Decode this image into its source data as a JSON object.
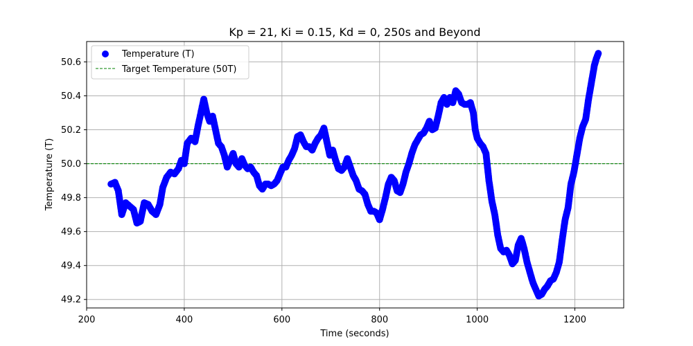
{
  "chart_data": {
    "type": "scatter",
    "title": "Kp = 21, Ki = 0.15, Kd = 0, 250s and Beyond",
    "xlabel": "Time (seconds)",
    "ylabel": "Temperature (T)",
    "xlim": [
      200,
      1300
    ],
    "ylim": [
      49.15,
      50.72
    ],
    "xticks": [
      200,
      400,
      600,
      800,
      1000,
      1200
    ],
    "yticks": [
      49.2,
      49.4,
      49.6,
      49.8,
      50.0,
      50.2,
      50.4,
      50.6
    ],
    "xtick_labels": [
      "200",
      "400",
      "600",
      "800",
      "1000",
      "1200"
    ],
    "ytick_labels": [
      "49.2",
      "49.4",
      "49.6",
      "49.8",
      "50.0",
      "50.2",
      "50.4",
      "50.6"
    ],
    "grid": true,
    "legend_position": "top-left",
    "series": [
      {
        "name": "Temperature (T)",
        "color": "#0000ff",
        "points": [
          [
            250,
            49.88
          ],
          [
            258,
            49.89
          ],
          [
            265,
            49.84
          ],
          [
            272,
            49.7
          ],
          [
            280,
            49.77
          ],
          [
            288,
            49.75
          ],
          [
            296,
            49.73
          ],
          [
            303,
            49.65
          ],
          [
            310,
            49.66
          ],
          [
            318,
            49.77
          ],
          [
            326,
            49.76
          ],
          [
            334,
            49.72
          ],
          [
            342,
            49.7
          ],
          [
            350,
            49.76
          ],
          [
            356,
            49.86
          ],
          [
            364,
            49.92
          ],
          [
            372,
            49.95
          ],
          [
            380,
            49.94
          ],
          [
            388,
            49.97
          ],
          [
            394,
            50.02
          ],
          [
            400,
            50.0
          ],
          [
            406,
            50.12
          ],
          [
            414,
            50.15
          ],
          [
            422,
            50.13
          ],
          [
            428,
            50.22
          ],
          [
            434,
            50.3
          ],
          [
            440,
            50.38
          ],
          [
            446,
            50.3
          ],
          [
            452,
            50.25
          ],
          [
            458,
            50.28
          ],
          [
            464,
            50.2
          ],
          [
            470,
            50.12
          ],
          [
            476,
            50.1
          ],
          [
            482,
            50.05
          ],
          [
            488,
            49.98
          ],
          [
            494,
            50.02
          ],
          [
            500,
            50.06
          ],
          [
            506,
            50.0
          ],
          [
            512,
            49.98
          ],
          [
            518,
            50.03
          ],
          [
            524,
            49.99
          ],
          [
            530,
            49.97
          ],
          [
            536,
            49.98
          ],
          [
            542,
            49.95
          ],
          [
            548,
            49.93
          ],
          [
            554,
            49.87
          ],
          [
            560,
            49.85
          ],
          [
            566,
            49.88
          ],
          [
            572,
            49.88
          ],
          [
            578,
            49.87
          ],
          [
            584,
            49.88
          ],
          [
            590,
            49.9
          ],
          [
            596,
            49.94
          ],
          [
            602,
            49.98
          ],
          [
            608,
            49.98
          ],
          [
            614,
            50.02
          ],
          [
            620,
            50.05
          ],
          [
            626,
            50.09
          ],
          [
            632,
            50.16
          ],
          [
            638,
            50.17
          ],
          [
            644,
            50.13
          ],
          [
            650,
            50.1
          ],
          [
            656,
            50.1
          ],
          [
            662,
            50.08
          ],
          [
            668,
            50.12
          ],
          [
            674,
            50.15
          ],
          [
            680,
            50.17
          ],
          [
            686,
            50.21
          ],
          [
            692,
            50.13
          ],
          [
            698,
            50.05
          ],
          [
            704,
            50.08
          ],
          [
            710,
            50.02
          ],
          [
            716,
            49.97
          ],
          [
            722,
            49.96
          ],
          [
            728,
            49.98
          ],
          [
            734,
            50.03
          ],
          [
            740,
            49.98
          ],
          [
            746,
            49.93
          ],
          [
            752,
            49.9
          ],
          [
            758,
            49.85
          ],
          [
            764,
            49.84
          ],
          [
            770,
            49.82
          ],
          [
            776,
            49.76
          ],
          [
            782,
            49.72
          ],
          [
            788,
            49.72
          ],
          [
            794,
            49.71
          ],
          [
            800,
            49.67
          ],
          [
            806,
            49.73
          ],
          [
            812,
            49.8
          ],
          [
            818,
            49.88
          ],
          [
            824,
            49.92
          ],
          [
            830,
            49.9
          ],
          [
            836,
            49.84
          ],
          [
            842,
            49.83
          ],
          [
            848,
            49.88
          ],
          [
            854,
            49.95
          ],
          [
            860,
            50.0
          ],
          [
            866,
            50.06
          ],
          [
            872,
            50.11
          ],
          [
            878,
            50.14
          ],
          [
            884,
            50.17
          ],
          [
            890,
            50.18
          ],
          [
            896,
            50.21
          ],
          [
            902,
            50.25
          ],
          [
            908,
            50.2
          ],
          [
            914,
            50.21
          ],
          [
            920,
            50.28
          ],
          [
            926,
            50.36
          ],
          [
            932,
            50.39
          ],
          [
            938,
            50.35
          ],
          [
            944,
            50.39
          ],
          [
            950,
            50.36
          ],
          [
            956,
            50.43
          ],
          [
            962,
            50.41
          ],
          [
            968,
            50.36
          ],
          [
            974,
            50.35
          ],
          [
            980,
            50.35
          ],
          [
            986,
            50.36
          ],
          [
            992,
            50.3
          ],
          [
            996,
            50.2
          ],
          [
            1000,
            50.15
          ],
          [
            1006,
            50.12
          ],
          [
            1012,
            50.1
          ],
          [
            1018,
            50.06
          ],
          [
            1024,
            49.9
          ],
          [
            1030,
            49.78
          ],
          [
            1036,
            49.7
          ],
          [
            1042,
            49.58
          ],
          [
            1048,
            49.5
          ],
          [
            1054,
            49.48
          ],
          [
            1060,
            49.49
          ],
          [
            1066,
            49.46
          ],
          [
            1072,
            49.41
          ],
          [
            1078,
            49.43
          ],
          [
            1084,
            49.52
          ],
          [
            1090,
            49.56
          ],
          [
            1096,
            49.5
          ],
          [
            1102,
            49.42
          ],
          [
            1108,
            49.36
          ],
          [
            1114,
            49.3
          ],
          [
            1120,
            49.26
          ],
          [
            1126,
            49.22
          ],
          [
            1132,
            49.23
          ],
          [
            1138,
            49.26
          ],
          [
            1144,
            49.28
          ],
          [
            1150,
            49.31
          ],
          [
            1156,
            49.32
          ],
          [
            1162,
            49.36
          ],
          [
            1168,
            49.42
          ],
          [
            1174,
            49.55
          ],
          [
            1180,
            49.67
          ],
          [
            1186,
            49.74
          ],
          [
            1192,
            49.88
          ],
          [
            1198,
            49.95
          ],
          [
            1204,
            50.05
          ],
          [
            1210,
            50.15
          ],
          [
            1216,
            50.22
          ],
          [
            1222,
            50.26
          ],
          [
            1228,
            50.38
          ],
          [
            1234,
            50.48
          ],
          [
            1240,
            50.58
          ],
          [
            1244,
            50.62
          ],
          [
            1248,
            50.65
          ]
        ]
      },
      {
        "name": "Target Temperature (50T)",
        "color": "#008000",
        "style": "dashed",
        "y": 50.0
      }
    ]
  }
}
